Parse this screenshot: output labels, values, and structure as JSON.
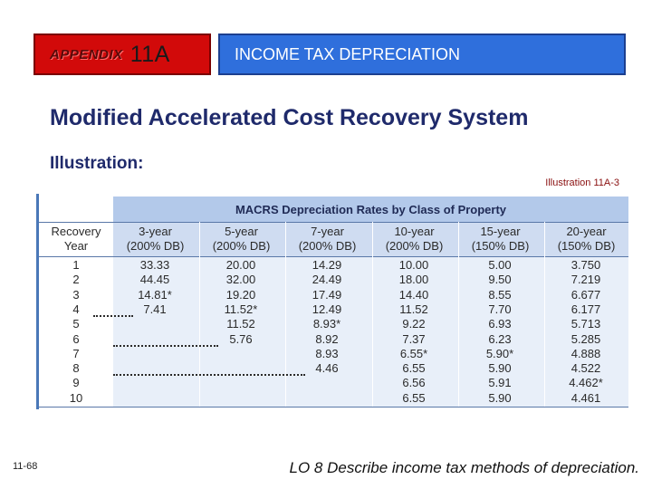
{
  "header": {
    "appendix_word": "APPENDIX",
    "appendix_number": "11A",
    "topic": "INCOME TAX DEPRECIATION"
  },
  "heading": "Modified Accelerated Cost Recovery System",
  "illustration_label": "Illustration:",
  "illustration_ref": "Illustration 11A-3",
  "table": {
    "title": "MACRS Depreciation Rates by Class of Property",
    "recovery_header": [
      "Recovery",
      "Year"
    ],
    "columns": [
      {
        "line1": "3-year",
        "line2": "(200% DB)"
      },
      {
        "line1": "5-year",
        "line2": "(200% DB)"
      },
      {
        "line1": "7-year",
        "line2": "(200% DB)"
      },
      {
        "line1": "10-year",
        "line2": "(200% DB)"
      },
      {
        "line1": "15-year",
        "line2": "(150% DB)"
      },
      {
        "line1": "20-year",
        "line2": "(150% DB)"
      }
    ],
    "years": [
      "1",
      "2",
      "3",
      "4",
      "5",
      "6",
      "7",
      "8",
      "9",
      "10"
    ],
    "rows": [
      [
        "33.33",
        "20.00",
        "14.29",
        "10.00",
        "5.00",
        "3.750"
      ],
      [
        "44.45",
        "32.00",
        "24.49",
        "18.00",
        "9.50",
        "7.219"
      ],
      [
        "14.81*",
        "19.20",
        "17.49",
        "14.40",
        "8.55",
        "6.677"
      ],
      [
        "7.41",
        "11.52*",
        "12.49",
        "11.52",
        "7.70",
        "6.177"
      ],
      [
        "",
        "11.52",
        "8.93*",
        "9.22",
        "6.93",
        "5.713"
      ],
      [
        "",
        "5.76",
        "8.92",
        "7.37",
        "6.23",
        "5.285"
      ],
      [
        "",
        "",
        "8.93",
        "6.55*",
        "5.90*",
        "4.888"
      ],
      [
        "",
        "",
        "4.46",
        "6.55",
        "5.90",
        "4.522"
      ],
      [
        "",
        "",
        "",
        "6.56",
        "5.91",
        "4.462*"
      ],
      [
        "",
        "",
        "",
        "6.55",
        "5.90",
        "4.461"
      ]
    ]
  },
  "footer": {
    "slide_number": "11-68",
    "learning_objective": "LO 8  Describe income tax methods of depreciation."
  },
  "colors": {
    "appendix_box": "#d20a0a",
    "title_box": "#2f6fdc",
    "heading_text": "#1f2a6b",
    "table_header_bg": "#b3c9ea",
    "table_body_bg": "#e8eff9"
  }
}
